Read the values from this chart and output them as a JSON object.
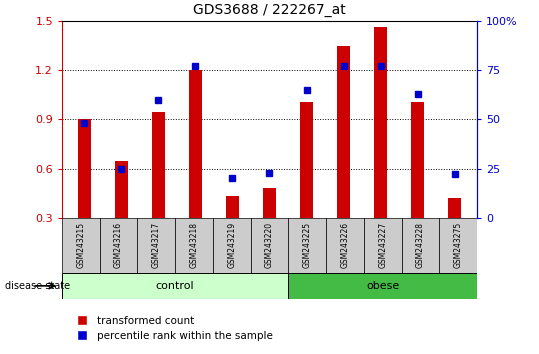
{
  "title": "GDS3688 / 222267_at",
  "samples": [
    "GSM243215",
    "GSM243216",
    "GSM243217",
    "GSM243218",
    "GSM243219",
    "GSM243220",
    "GSM243225",
    "GSM243226",
    "GSM243227",
    "GSM243228",
    "GSM243275"
  ],
  "red_values": [
    0.905,
    0.648,
    0.948,
    1.205,
    0.43,
    0.48,
    1.005,
    1.35,
    1.465,
    1.005,
    0.42
  ],
  "blue_values": [
    48,
    25,
    60,
    77,
    20,
    23,
    65,
    77,
    77,
    63,
    22
  ],
  "baseline": 0.3,
  "ylim_left": [
    0.3,
    1.5
  ],
  "ylim_right": [
    0,
    100
  ],
  "yticks_left": [
    0.3,
    0.6,
    0.9,
    1.2,
    1.5
  ],
  "yticks_right": [
    0,
    25,
    50,
    75,
    100
  ],
  "right_tick_labels": [
    "0",
    "25",
    "50",
    "75",
    "100%"
  ],
  "bar_color": "#CC0000",
  "blue_color": "#0000CC",
  "label_color_left": "#CC0000",
  "label_color_right": "#0000CC",
  "bar_width": 0.35,
  "legend_red": "transformed count",
  "legend_blue": "percentile rank within the sample",
  "disease_state_label": "disease state",
  "control_label": "control",
  "obese_label": "obese",
  "control_color": "#CCFFCC",
  "obese_color": "#44BB44",
  "tick_label_area_color": "#CCCCCC"
}
